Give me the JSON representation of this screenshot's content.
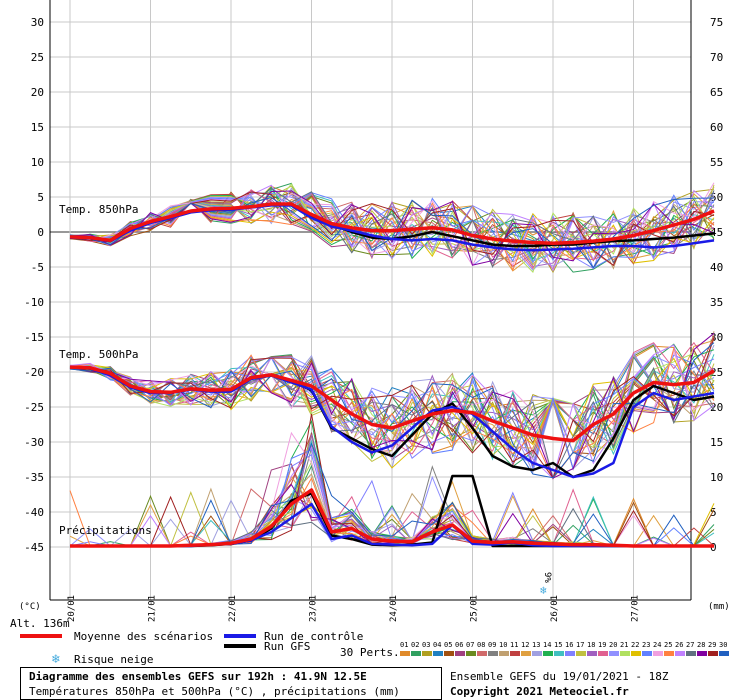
{
  "chart_data": {
    "type": "line",
    "title": "Diagramme des ensembles GEFS sur 192h : 41.9N 12.5E",
    "subtitle": "Températures 850hPa et 500hPa (°C) , précipitations (mm)",
    "left_axis_ticks": [
      "30",
      "25",
      "20",
      "15",
      "10",
      "5",
      "0",
      "-5",
      "-10",
      "-15",
      "-20",
      "-25",
      "-30",
      "-35",
      "-40",
      "-45"
    ],
    "right_axis_ticks": [
      "75",
      "70",
      "65",
      "60",
      "55",
      "50",
      "45",
      "40",
      "35",
      "30",
      "25",
      "20",
      "15",
      "10",
      "5",
      "0"
    ],
    "left_unit": "(°C)",
    "right_unit": "(mm)",
    "x_labels": [
      "20/01",
      "21/01",
      "22/01",
      "23/01",
      "24/01",
      "25/01",
      "26/01",
      "27/01"
    ],
    "panel_labels": [
      "Temp. 850hPa",
      "Temp. 500hPa",
      "Précipitations"
    ],
    "altitude": "Alt. 136m",
    "snow_marker": {
      "date_index": 6,
      "label": "9%"
    },
    "time_hours": [
      0,
      6,
      12,
      18,
      24,
      30,
      36,
      42,
      48,
      54,
      60,
      66,
      72,
      78,
      84,
      90,
      96,
      102,
      108,
      114,
      120,
      126,
      132,
      138,
      144,
      150,
      156,
      162,
      168,
      174,
      180,
      186,
      192
    ],
    "series": [
      {
        "name": "Moyenne des scénarios",
        "color": "#ee1111",
        "t850": [
          -0.7,
          -0.8,
          -1.2,
          0.5,
          1.5,
          2.2,
          3.0,
          3.3,
          3.4,
          3.6,
          4.0,
          4.0,
          2.5,
          1.2,
          0.6,
          0.2,
          0.2,
          0.4,
          0.6,
          0.3,
          -0.5,
          -1.0,
          -1.3,
          -1.5,
          -1.6,
          -1.5,
          -1.3,
          -1.0,
          -0.5,
          0.2,
          1.0,
          1.8,
          3.0
        ],
        "t500": [
          -19.3,
          -19.4,
          -20.2,
          -22.0,
          -22.8,
          -22.9,
          -22.4,
          -22.6,
          -22.5,
          -20.8,
          -20.4,
          -21.2,
          -22.0,
          -24.0,
          -26.0,
          -27.5,
          -28.0,
          -27.0,
          -26.0,
          -25.5,
          -25.8,
          -27.0,
          -28.0,
          -29.0,
          -29.5,
          -29.8,
          -27.5,
          -26.0,
          -23.0,
          -21.5,
          -21.8,
          -21.5,
          -19.8
        ],
        "precip": [
          0,
          0,
          0,
          0,
          0,
          0,
          0.1,
          0.2,
          0.4,
          1.0,
          2.8,
          6.0,
          8.0,
          2.0,
          2.5,
          1.0,
          0.7,
          0.6,
          2.0,
          3.0,
          0.7,
          0.5,
          0.6,
          0.4,
          0.3,
          0.2,
          0.2,
          0.1,
          0,
          0,
          0,
          0,
          0
        ]
      },
      {
        "name": "Run de contrôle",
        "color": "#1a1ae6",
        "t850": [
          -0.8,
          -0.9,
          -1.3,
          0.2,
          1.3,
          2.0,
          2.8,
          3.1,
          3.2,
          3.5,
          3.8,
          3.8,
          2.0,
          0.8,
          0.2,
          -0.5,
          -1.0,
          -1.2,
          -1.0,
          -1.2,
          -1.8,
          -2.2,
          -2.5,
          -2.6,
          -2.5,
          -2.4,
          -2.2,
          -2.0,
          -2.0,
          -2.2,
          -2.0,
          -1.6,
          -1.2
        ],
        "t500": [
          -19.3,
          -19.5,
          -20.5,
          -22.2,
          -23.0,
          -23.0,
          -22.5,
          -22.8,
          -22.8,
          -21.0,
          -20.5,
          -21.5,
          -22.5,
          -27.8,
          -30.0,
          -31.5,
          -30.5,
          -28.0,
          -25.5,
          -25.0,
          -26.0,
          -28.5,
          -31.0,
          -33.0,
          -34.0,
          -35.0,
          -34.5,
          -33.0,
          -25.0,
          -23.0,
          -24.0,
          -23.5,
          -23.0
        ],
        "precip": [
          0,
          0,
          0,
          0,
          0,
          0,
          0,
          0.2,
          0.3,
          0.8,
          2.0,
          4.0,
          6.0,
          1.0,
          1.5,
          0.3,
          0.2,
          0.1,
          0.3,
          3.0,
          0.3,
          0.2,
          0.5,
          0.1,
          0,
          0,
          0,
          0,
          0,
          0,
          0,
          0,
          0
        ]
      },
      {
        "name": "Run GFS",
        "color": "#000000",
        "t850": [
          -0.8,
          -0.9,
          -1.3,
          0.3,
          1.4,
          2.1,
          2.9,
          3.2,
          3.3,
          3.6,
          3.9,
          3.9,
          2.2,
          1.0,
          0.0,
          -0.8,
          -1.0,
          -0.6,
          0.0,
          -0.6,
          -1.2,
          -1.8,
          -2.0,
          -2.0,
          -1.8,
          -1.8,
          -1.5,
          -1.3,
          -1.2,
          -1.0,
          -0.8,
          -0.5,
          -0.2
        ],
        "t500": [
          -19.3,
          -19.5,
          -20.4,
          -22.1,
          -22.9,
          -23.0,
          -22.4,
          -22.7,
          -22.7,
          -20.9,
          -20.5,
          -21.3,
          -22.6,
          -28.0,
          -29.5,
          -31.0,
          -32.0,
          -29.0,
          -26.0,
          -24.5,
          -28.0,
          -32.0,
          -33.5,
          -34.0,
          -33.0,
          -35.0,
          -34.0,
          -29.5,
          -24.0,
          -22.0,
          -23.0,
          -24.0,
          -23.5
        ],
        "precip": [
          0,
          0,
          0,
          0,
          0,
          0,
          0,
          0.1,
          0.3,
          0.8,
          2.5,
          6.5,
          7.5,
          1.5,
          1.0,
          0.2,
          0.1,
          0.2,
          0.5,
          10.0,
          10.0,
          0,
          0,
          0,
          0,
          0,
          0,
          0,
          0,
          0,
          0,
          0,
          0
        ]
      }
    ],
    "perturbation_count": "30 Perts.",
    "perturbation_labels": [
      "01",
      "02",
      "03",
      "04",
      "05",
      "06",
      "07",
      "08",
      "09",
      "10",
      "11",
      "12",
      "13",
      "14",
      "15",
      "16",
      "17",
      "18",
      "19",
      "20",
      "21",
      "22",
      "23",
      "24",
      "25",
      "26",
      "27",
      "28",
      "29",
      "30"
    ],
    "perturbation_colors": [
      "#e08a2a",
      "#30a060",
      "#b0a020",
      "#2080c0",
      "#a05010",
      "#a04080",
      "#6a8a20",
      "#d06a6a",
      "#808080",
      "#c0a070",
      "#c04040",
      "#e0a040",
      "#a0a0e0",
      "#20b050",
      "#40c0c0",
      "#8080ff",
      "#c0c040",
      "#a060c0",
      "#e06090",
      "#9090ff",
      "#b0e060",
      "#e0c000",
      "#6080ff",
      "#f0a0e0",
      "#ff8040",
      "#c080ff",
      "#607080",
      "#8000a0",
      "#a02020",
      "#2060c0"
    ]
  },
  "legend": {
    "mean": "Moyenne des scénarios",
    "control": "Run de contrôle",
    "gfs": "Run GFS",
    "snow": "Risque neige",
    "perts": "30 Perts."
  },
  "footer": {
    "title": "Diagramme des ensembles GEFS sur 192h : 41.9N 12.5E",
    "subtitle": "Températures 850hPa et 500hPa (°C) , précipitations (mm)"
  },
  "credits": {
    "run": "Ensemble GEFS du 19/01/2021 - 18Z",
    "copyright": "Copyright 2021 Meteociel.fr"
  },
  "colors": {
    "mean": "#ee1111",
    "control": "#1a1ae6",
    "gfs": "#000000",
    "snow": "#44aadd"
  }
}
